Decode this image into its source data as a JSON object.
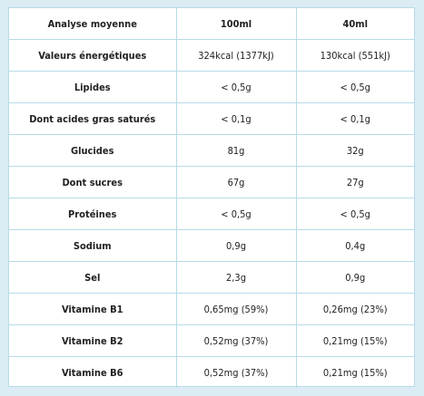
{
  "table": {
    "headers": [
      "Analyse moyenne",
      "100ml",
      "40ml"
    ],
    "rows": [
      {
        "label": "Valeurs énergétiques",
        "per100": "324kcal (1377kJ)",
        "per40": "130kcal (551kJ)"
      },
      {
        "label": "Lipides",
        "per100": "< 0,5g",
        "per40": "< 0,5g"
      },
      {
        "label": "Dont acides gras saturés",
        "per100": "< 0,1g",
        "per40": "< 0,1g"
      },
      {
        "label": "Glucides",
        "per100": "81g",
        "per40": "32g"
      },
      {
        "label": "Dont sucres",
        "per100": "67g",
        "per40": "27g"
      },
      {
        "label": "Protéines",
        "per100": "< 0,5g",
        "per40": "< 0,5g"
      },
      {
        "label": "Sodium",
        "per100": "0,9g",
        "per40": "0,4g"
      },
      {
        "label": "Sel",
        "per100": "2,3g",
        "per40": "0,9g"
      },
      {
        "label": "Vitamine B1",
        "per100": "0,65mg (59%)",
        "per40": "0,26mg (23%)"
      },
      {
        "label": "Vitamine B2",
        "per100": "0,52mg (37%)",
        "per40": "0,21mg (15%)"
      },
      {
        "label": "Vitamine B6",
        "per100": "0,52mg (37%)",
        "per40": "0,21mg (15%)"
      }
    ]
  },
  "colors": {
    "background": "#dbecf4",
    "card": "#ffffff",
    "border": "#b7dbe8",
    "text": "#222222"
  }
}
